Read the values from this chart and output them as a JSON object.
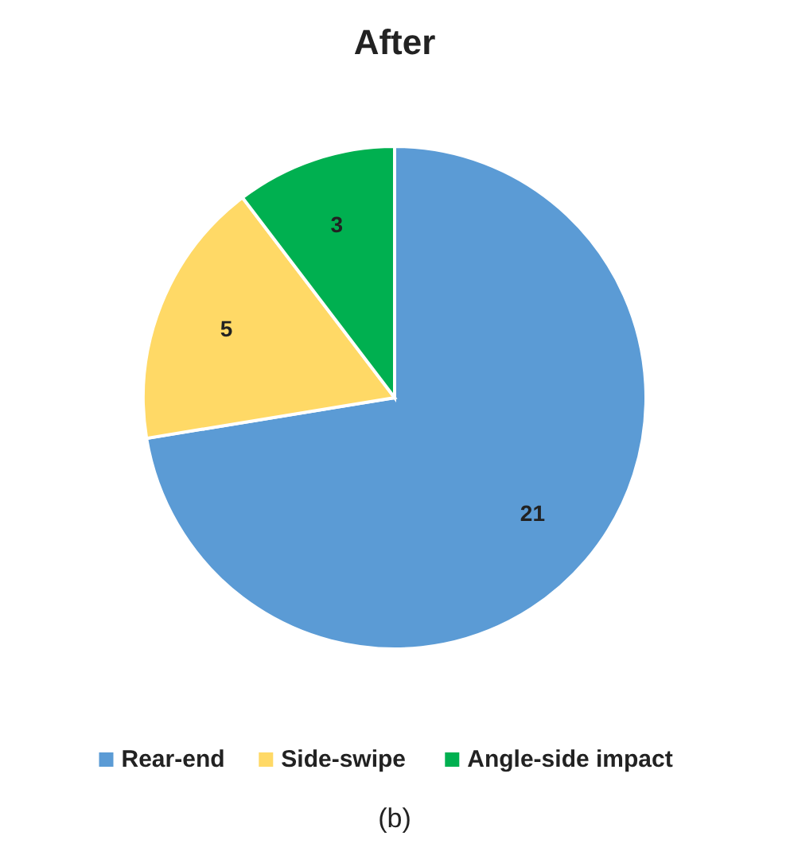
{
  "chart_data": {
    "type": "pie",
    "title": "After",
    "categories": [
      "Rear-end",
      "Side-swipe",
      "Angle-side impact"
    ],
    "values": [
      21,
      5,
      3
    ],
    "colors": [
      "#5b9bd5",
      "#ffd966",
      "#00b050"
    ],
    "data_labels": true,
    "legend": "bottom",
    "annotations": [
      "(b)"
    ]
  }
}
